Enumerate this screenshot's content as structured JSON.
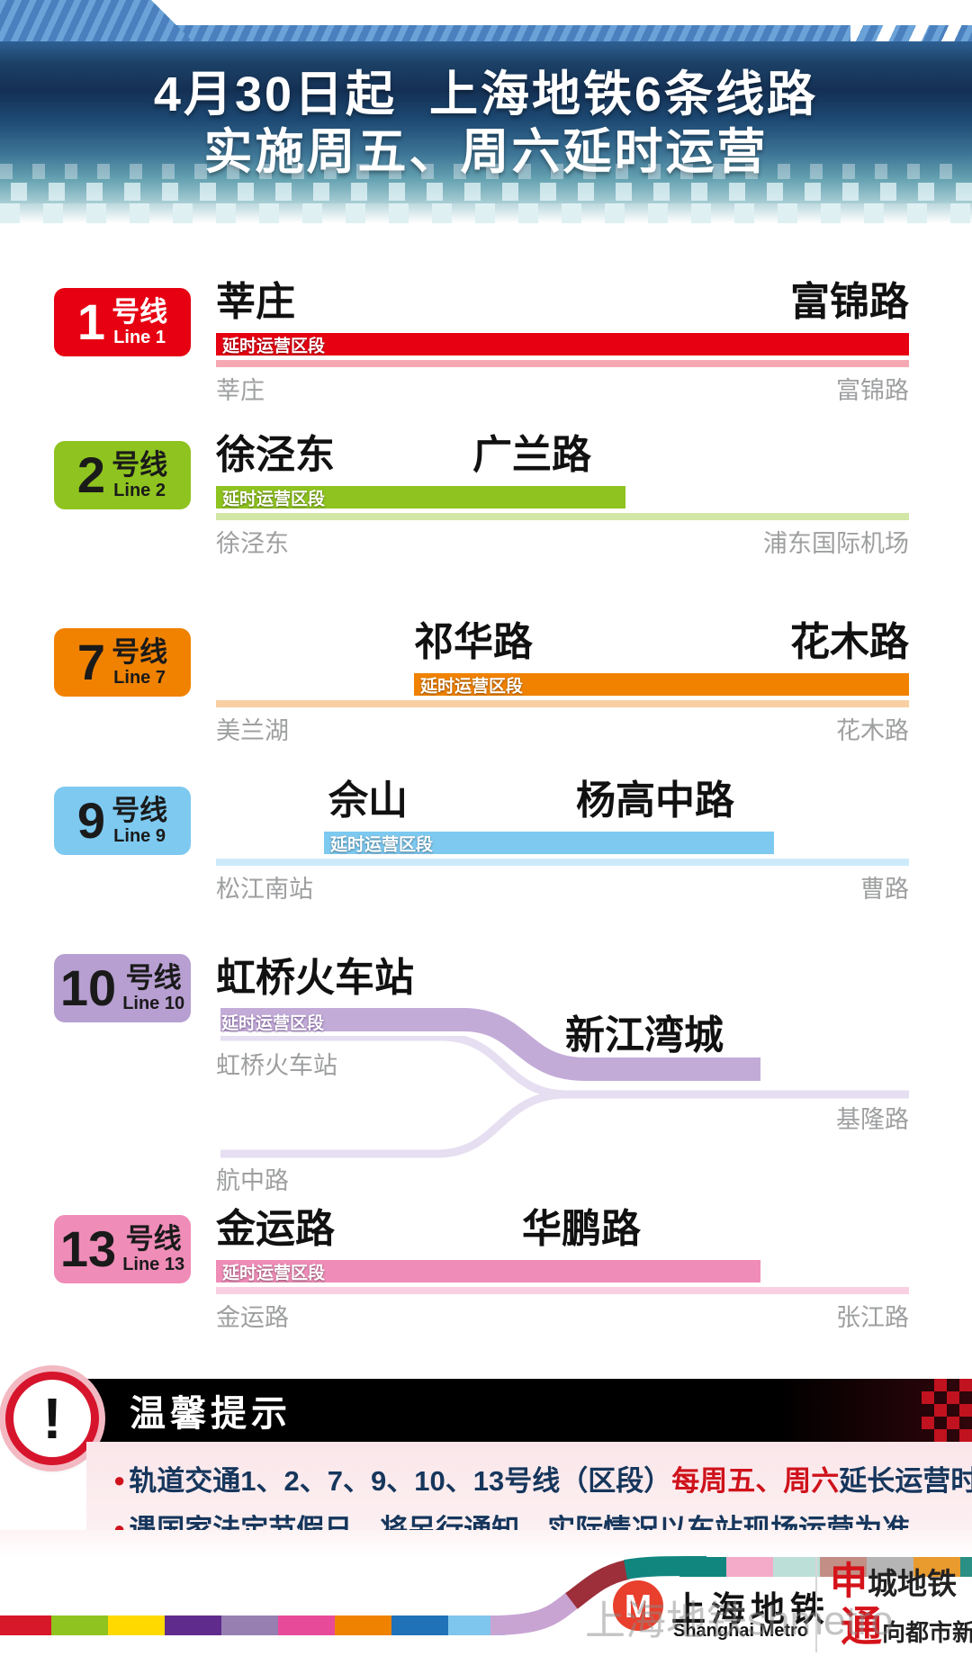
{
  "header": {
    "title_line1": "4月30日起  上海地铁6条线路",
    "title_line2": "实施周五、周六延时运营"
  },
  "segment_label": "延时运营区段",
  "lines": [
    {
      "num": "1",
      "unit": "号线",
      "en": "Line 1",
      "color": "#e60012",
      "light": "#f6a8b2",
      "badge_text": "#ffffff",
      "station_left": "莘庄",
      "station_right": "富锦路",
      "terminal_left": "莘庄",
      "terminal_right": "富锦路"
    },
    {
      "num": "2",
      "unit": "号线",
      "en": "Line 2",
      "color": "#8fc31f",
      "light": "#d2e7a6",
      "badge_text": "#1a1a1a",
      "station_left": "徐泾东",
      "station_right": "广兰路",
      "terminal_left": "徐泾东",
      "terminal_right": "浦东国际机场"
    },
    {
      "num": "7",
      "unit": "号线",
      "en": "Line 7",
      "color": "#f08200",
      "light": "#f8cfa2",
      "badge_text": "#1a1a1a",
      "station_left": "祁华路",
      "station_right": "花木路",
      "terminal_left": "美兰湖",
      "terminal_right": "花木路"
    },
    {
      "num": "9",
      "unit": "号线",
      "en": "Line 9",
      "color": "#7dc9f0",
      "light": "#cdeafb",
      "badge_text": "#1a1a1a",
      "station_left": "佘山",
      "station_right": "杨高中路",
      "terminal_left": "松江南站",
      "terminal_right": "曹路"
    },
    {
      "num": "10",
      "unit": "号线",
      "en": "Line 10",
      "color": "#b79fd1",
      "band": "#c3abd8",
      "light": "#e6def1",
      "badge_text": "#1a1a1a",
      "station_upper": "虹桥火车站",
      "station_mid": "新江湾城",
      "terminal_upper": "虹桥火车站",
      "terminal_right": "基隆路",
      "terminal_lower": "航中路"
    },
    {
      "num": "13",
      "unit": "号线",
      "en": "Line 13",
      "color": "#ef8cb8",
      "light": "#f9d0e2",
      "badge_text": "#1a1a1a",
      "station_left": "金运路",
      "station_right": "华鹏路",
      "terminal_left": "金运路",
      "terminal_right": "张江路"
    }
  ],
  "notice": {
    "icon": "!",
    "title": "温馨提示",
    "bullet": "●",
    "b1_pre": "轨道交通1、2、7、9、10、13号线（区段）",
    "b1_red": "每周五、周六",
    "b1_post": "延长运营时间。",
    "b2": "遇国家法定节假日，将另行通知。实际情况以车站现场运营为准"
  },
  "footer": {
    "brand_cn": "上海地铁",
    "brand_en": "Shanghai Metro",
    "logo_letter": "M",
    "logo_color": "#e8402d",
    "slogan1_red": "申",
    "slogan1_rest": "城地铁",
    "slogan2_red": "通",
    "slogan2_rest": "向都市新生活",
    "watermark": "上海地铁shmetro",
    "ribbon_bottom": [
      "#d7182a",
      "#8fc31f",
      "#ffd900",
      "#5f2c8e",
      "#977fb2",
      "#e84a9a",
      "#ef8200",
      "#1f72b8",
      "#7fc6ee"
    ],
    "ribbon_top": [
      "#11867f",
      "#f3abc9",
      "#bcdfd8",
      "#c28e85",
      "#b5b5b6",
      "#e99b2e",
      "#2a8f85"
    ]
  }
}
